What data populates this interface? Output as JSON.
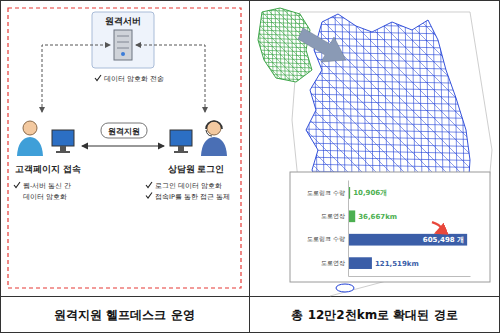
{
  "left_panel": {
    "server": {
      "label": "원격서버",
      "bullets": [
        [
          "데이터 암호화 전송"
        ]
      ]
    },
    "customer": {
      "label": "고객페이지 접속",
      "bullets": [
        [
          "웹-서버 통신 간",
          "데이터 암호화"
        ]
      ]
    },
    "agent": {
      "label": "상담원 로그인",
      "bullets": [
        [
          "로그인 데이터 암호화"
        ],
        [
          "접속IP를 통한 접근 통제"
        ]
      ]
    },
    "link": "원격지원"
  },
  "captions": [
    "원격지원 헬프데스크 운영",
    "총 12만2천km로 확대된 경로"
  ],
  "chart_data": {
    "type": "bar",
    "orientation": "horizontal",
    "categories": [
      "도로링크 수량",
      "도로연장",
      "도로링크 수량",
      "도로연장"
    ],
    "values": [
      10906,
      36667,
      605498,
      121519
    ],
    "value_labels": [
      "10,906개",
      "36,667km",
      "605,498 개",
      "121,519km"
    ],
    "colors": [
      "#4caf50",
      "#4caf50",
      "#3b5ea8",
      "#3b5ea8"
    ],
    "data_labels": true,
    "tick_labels": "y",
    "xlim": [
      0,
      620000
    ]
  }
}
